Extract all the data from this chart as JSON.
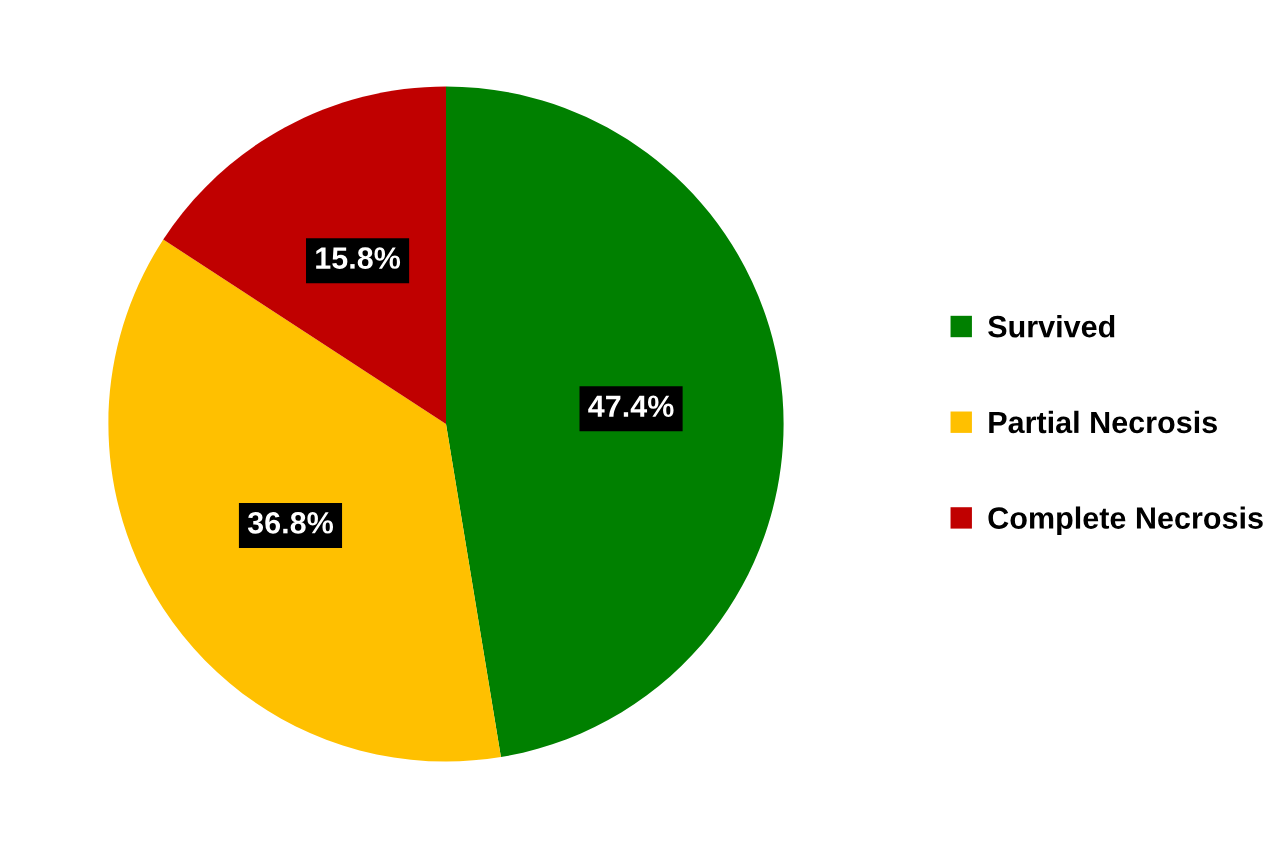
{
  "chart_data": {
    "type": "pie",
    "categories": [
      "Survived",
      "Partial Necrosis",
      "Complete Necrosis"
    ],
    "values": [
      47.4,
      36.8,
      15.8
    ],
    "colors": [
      "#008000",
      "#ffc000",
      "#c00000"
    ],
    "value_labels": [
      "47.4%",
      "36.8%",
      "15.8%"
    ],
    "legend": "right"
  }
}
